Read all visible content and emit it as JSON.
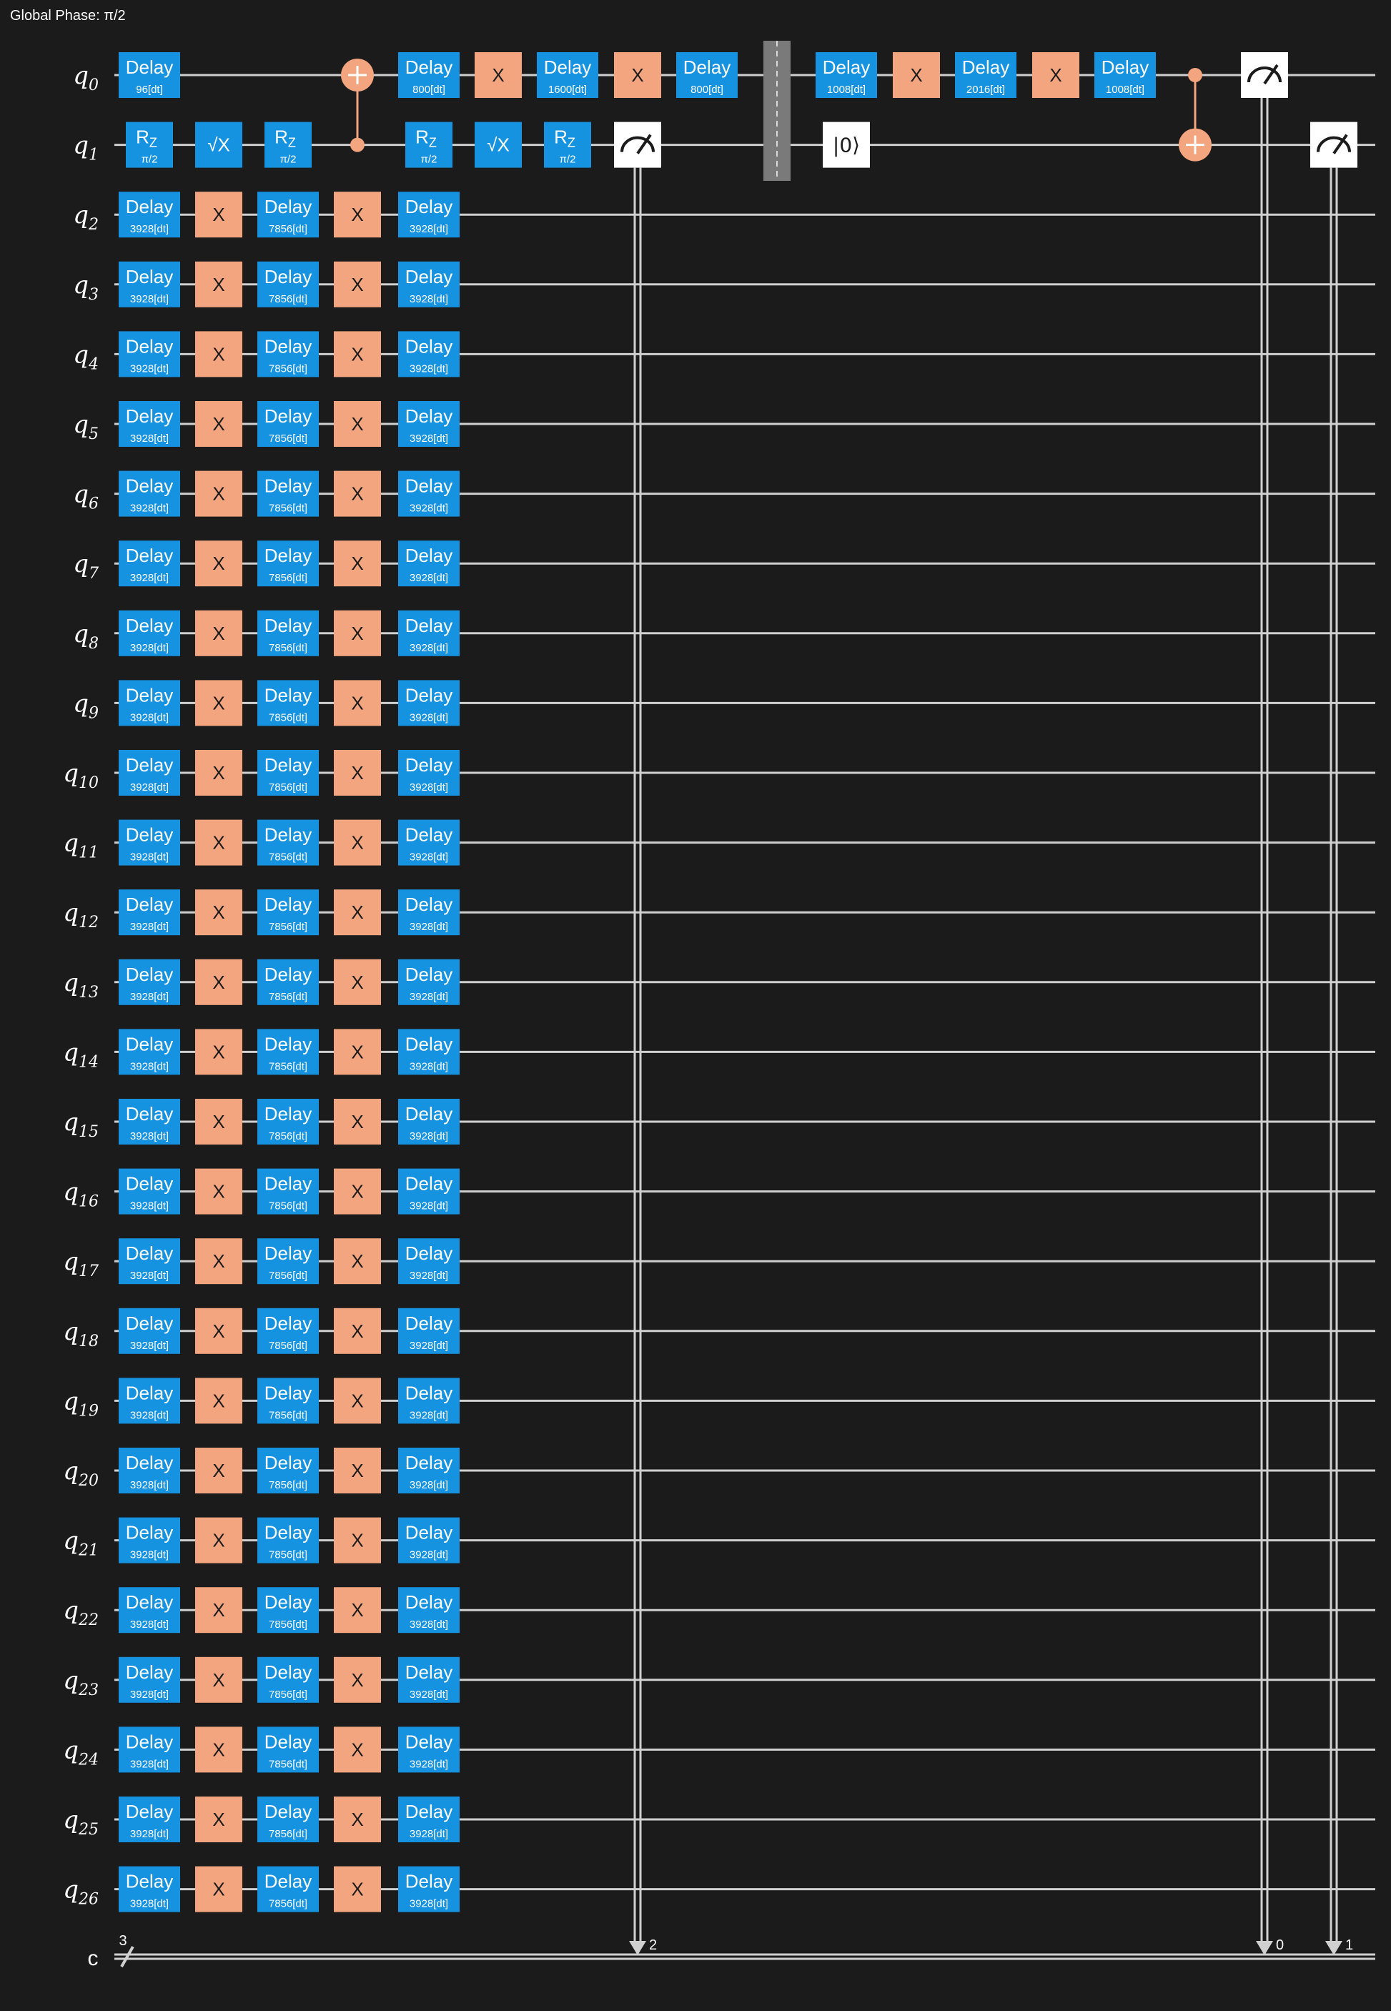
{
  "global_phase": "Global Phase: π/2",
  "colors": {
    "background": "#1b1b1b",
    "wire": "#d0d0d0",
    "delay": "#1592e0",
    "x_gate": "#f3a57f",
    "measure": "#ffffff",
    "barrier": "#7a7a7a"
  },
  "qubits": [
    {
      "label": "q",
      "index": "0"
    },
    {
      "label": "q",
      "index": "1"
    },
    {
      "label": "q",
      "index": "2"
    },
    {
      "label": "q",
      "index": "3"
    },
    {
      "label": "q",
      "index": "4"
    },
    {
      "label": "q",
      "index": "5"
    },
    {
      "label": "q",
      "index": "6"
    },
    {
      "label": "q",
      "index": "7"
    },
    {
      "label": "q",
      "index": "8"
    },
    {
      "label": "q",
      "index": "9"
    },
    {
      "label": "q",
      "index": "10"
    },
    {
      "label": "q",
      "index": "11"
    },
    {
      "label": "q",
      "index": "12"
    },
    {
      "label": "q",
      "index": "13"
    },
    {
      "label": "q",
      "index": "14"
    },
    {
      "label": "q",
      "index": "15"
    },
    {
      "label": "q",
      "index": "16"
    },
    {
      "label": "q",
      "index": "17"
    },
    {
      "label": "q",
      "index": "18"
    },
    {
      "label": "q",
      "index": "19"
    },
    {
      "label": "q",
      "index": "20"
    },
    {
      "label": "q",
      "index": "21"
    },
    {
      "label": "q",
      "index": "22"
    },
    {
      "label": "q",
      "index": "23"
    },
    {
      "label": "q",
      "index": "24"
    },
    {
      "label": "q",
      "index": "25"
    },
    {
      "label": "q",
      "index": "26"
    }
  ],
  "classical": {
    "label": "c",
    "width": "3"
  },
  "q0_gates": [
    {
      "type": "delay",
      "name": "Delay",
      "param": "96[dt]"
    },
    {
      "type": "cx_target"
    },
    {
      "type": "delay",
      "name": "Delay",
      "param": "800[dt]"
    },
    {
      "type": "x",
      "name": "X"
    },
    {
      "type": "delay",
      "name": "Delay",
      "param": "1600[dt]"
    },
    {
      "type": "x",
      "name": "X"
    },
    {
      "type": "delay",
      "name": "Delay",
      "param": "800[dt]"
    },
    {
      "type": "delay",
      "name": "Delay",
      "param": "1008[dt]"
    },
    {
      "type": "x",
      "name": "X"
    },
    {
      "type": "delay",
      "name": "Delay",
      "param": "2016[dt]"
    },
    {
      "type": "x",
      "name": "X"
    },
    {
      "type": "delay",
      "name": "Delay",
      "param": "1008[dt]"
    },
    {
      "type": "cx_control"
    },
    {
      "type": "measure",
      "clbit": "0"
    }
  ],
  "q1_gates": [
    {
      "type": "rz",
      "name": "R",
      "sub": "Z",
      "param": "π/2"
    },
    {
      "type": "sx",
      "name": "√X"
    },
    {
      "type": "rz",
      "name": "R",
      "sub": "Z",
      "param": "π/2"
    },
    {
      "type": "cx_control"
    },
    {
      "type": "rz",
      "name": "R",
      "sub": "Z",
      "param": "π/2"
    },
    {
      "type": "sx",
      "name": "√X"
    },
    {
      "type": "rz",
      "name": "R",
      "sub": "Z",
      "param": "π/2"
    },
    {
      "type": "measure",
      "clbit": "2"
    },
    {
      "type": "reset",
      "name": "|0⟩"
    },
    {
      "type": "cx_target"
    },
    {
      "type": "measure",
      "clbit": "1"
    }
  ],
  "idle_sequence": [
    {
      "type": "delay",
      "name": "Delay",
      "param": "3928[dt]"
    },
    {
      "type": "x",
      "name": "X"
    },
    {
      "type": "delay",
      "name": "Delay",
      "param": "7856[dt]"
    },
    {
      "type": "x",
      "name": "X"
    },
    {
      "type": "delay",
      "name": "Delay",
      "param": "3928[dt]"
    }
  ]
}
